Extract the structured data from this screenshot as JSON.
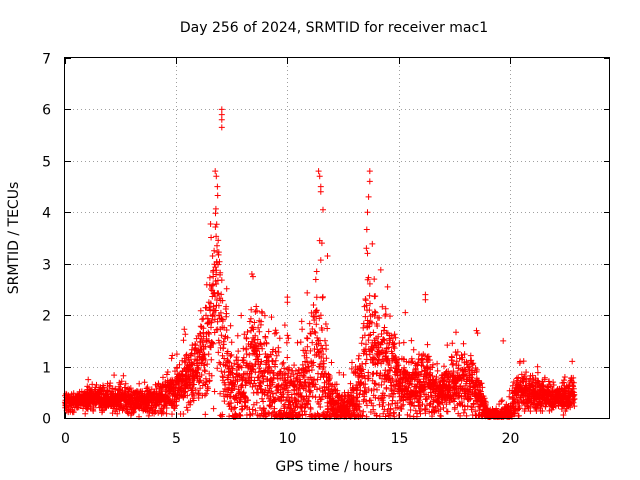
{
  "chart_data": {
    "type": "scatter",
    "title": "Day 256 of 2024, SRMTID for receiver mac1",
    "xlabel": "GPS time / hours",
    "ylabel": "SRMTID / TECUs",
    "xlim": [
      0,
      24.5
    ],
    "ylim": [
      0,
      7
    ],
    "xticks": [
      0,
      5,
      10,
      15,
      20
    ],
    "yticks": [
      0,
      1,
      2,
      3,
      4,
      5,
      6,
      7
    ],
    "grid": true,
    "marker": "+",
    "color": "#ff0000",
    "series": [
      {
        "name": "SRMTID",
        "envelope": {
          "hours": [
            0,
            0.5,
            1,
            1.5,
            2,
            2.5,
            3,
            3.5,
            4,
            4.5,
            5,
            5.5,
            6,
            6.3,
            6.6,
            6.8,
            7.0,
            7.3,
            7.6,
            8.0,
            8.4,
            8.8,
            9.2,
            9.6,
            10.0,
            10.4,
            10.8,
            11.2,
            11.6,
            12.0,
            12.4,
            12.8,
            13.2,
            13.6,
            14.0,
            14.4,
            14.8,
            15.2,
            15.6,
            16.0,
            16.4,
            16.8,
            17.2,
            17.6,
            18.0,
            18.4,
            18.7,
            19.0,
            19.5,
            20.0,
            20.3,
            20.6,
            21.0,
            21.5,
            22.0,
            22.5,
            22.9
          ],
          "median": [
            0.3,
            0.32,
            0.35,
            0.4,
            0.35,
            0.38,
            0.33,
            0.3,
            0.35,
            0.45,
            0.6,
            0.8,
            1.0,
            1.2,
            2.2,
            2.8,
            1.5,
            0.9,
            0.5,
            0.7,
            1.1,
            0.9,
            0.6,
            0.5,
            0.4,
            0.3,
            0.6,
            1.0,
            0.8,
            0.3,
            0.2,
            0.2,
            0.4,
            1.2,
            1.0,
            1.1,
            0.8,
            0.7,
            0.6,
            0.7,
            0.6,
            0.5,
            0.6,
            0.7,
            0.7,
            0.6,
            0.3,
            0.05,
            0.05,
            0.1,
            0.4,
            0.5,
            0.5,
            0.45,
            0.4,
            0.4,
            0.5
          ],
          "spread": [
            0.15,
            0.15,
            0.2,
            0.2,
            0.2,
            0.25,
            0.2,
            0.2,
            0.25,
            0.3,
            0.4,
            0.5,
            0.6,
            0.8,
            1.5,
            1.8,
            1.5,
            0.8,
            0.6,
            0.8,
            1.2,
            1.0,
            0.8,
            0.9,
            0.8,
            0.5,
            0.9,
            1.5,
            1.2,
            0.4,
            0.3,
            0.3,
            0.6,
            1.5,
            1.0,
            1.0,
            0.7,
            0.5,
            0.5,
            0.6,
            0.5,
            0.4,
            0.4,
            0.5,
            0.5,
            0.6,
            0.4,
            0.1,
            0.1,
            0.2,
            0.35,
            0.3,
            0.3,
            0.25,
            0.2,
            0.25,
            0.3
          ]
        },
        "peaks": [
          {
            "x": 6.75,
            "y": 4.8
          },
          {
            "x": 6.8,
            "y": 4.7
          },
          {
            "x": 6.85,
            "y": 4.5
          },
          {
            "x": 7.05,
            "y": 6.0
          },
          {
            "x": 7.05,
            "y": 5.9
          },
          {
            "x": 7.05,
            "y": 5.8
          },
          {
            "x": 7.05,
            "y": 5.65
          },
          {
            "x": 11.4,
            "y": 4.8
          },
          {
            "x": 11.45,
            "y": 4.7
          },
          {
            "x": 11.5,
            "y": 4.5
          },
          {
            "x": 11.5,
            "y": 4.4
          },
          {
            "x": 11.6,
            "y": 4.05
          },
          {
            "x": 11.45,
            "y": 3.45
          },
          {
            "x": 11.55,
            "y": 3.4
          },
          {
            "x": 11.8,
            "y": 3.15
          },
          {
            "x": 13.7,
            "y": 4.8
          },
          {
            "x": 13.7,
            "y": 4.6
          },
          {
            "x": 13.65,
            "y": 4.3
          },
          {
            "x": 13.6,
            "y": 4.0
          },
          {
            "x": 13.55,
            "y": 3.3
          },
          {
            "x": 13.6,
            "y": 3.2
          },
          {
            "x": 13.9,
            "y": 2.7
          },
          {
            "x": 8.4,
            "y": 2.8
          },
          {
            "x": 8.45,
            "y": 2.75
          },
          {
            "x": 10.0,
            "y": 2.35
          },
          {
            "x": 10.0,
            "y": 2.25
          },
          {
            "x": 16.2,
            "y": 2.4
          },
          {
            "x": 16.2,
            "y": 2.3
          },
          {
            "x": 14.5,
            "y": 2.55
          },
          {
            "x": 15.3,
            "y": 2.05
          },
          {
            "x": 18.5,
            "y": 1.7
          },
          {
            "x": 18.55,
            "y": 1.65
          },
          {
            "x": 19.7,
            "y": 1.5
          },
          {
            "x": 22.8,
            "y": 1.1
          }
        ]
      }
    ]
  }
}
